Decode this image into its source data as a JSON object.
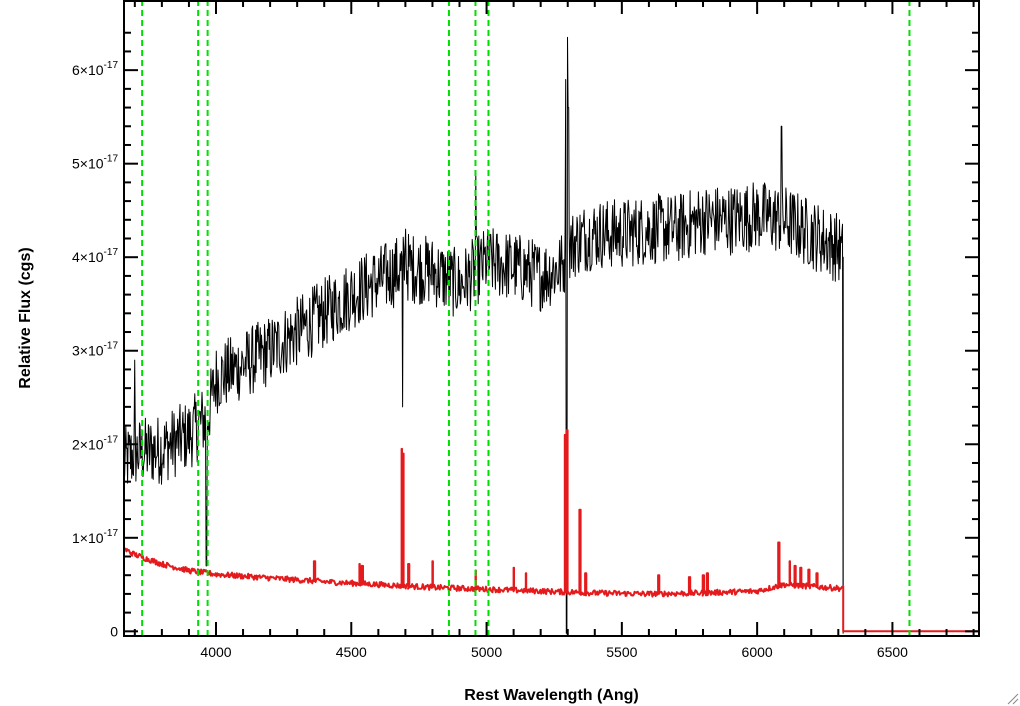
{
  "chart_data": {
    "type": "line",
    "title": "",
    "xlabel": "Rest Wavelength (Ang)",
    "ylabel": "Relative Flux (cgs)",
    "xlim": [
      3660,
      6820
    ],
    "ylim": [
      -5e-19,
      6.75e-17
    ],
    "x_ticks": [
      {
        "value": 4000,
        "label": "4000"
      },
      {
        "value": 4500,
        "label": "4500"
      },
      {
        "value": 5000,
        "label": "5000"
      },
      {
        "value": 5500,
        "label": "5500"
      },
      {
        "value": 6000,
        "label": "6000"
      },
      {
        "value": 6500,
        "label": "6500"
      }
    ],
    "y_ticks": [
      {
        "value": 0,
        "label": "0",
        "mantissa": "",
        "exponent": ""
      },
      {
        "value": 1e-17,
        "label": "1×10-17",
        "mantissa": "1×10",
        "exponent": "-17"
      },
      {
        "value": 2e-17,
        "label": "2×10-17",
        "mantissa": "2×10",
        "exponent": "-17"
      },
      {
        "value": 3e-17,
        "label": "3×10-17",
        "mantissa": "3×10",
        "exponent": "-17"
      },
      {
        "value": 4e-17,
        "label": "4×10-17",
        "mantissa": "4×10",
        "exponent": "-17"
      },
      {
        "value": 5e-17,
        "label": "5×10-17",
        "mantissa": "5×10",
        "exponent": "-17"
      },
      {
        "value": 6e-17,
        "label": "6×10-17",
        "mantissa": "6×10",
        "exponent": "-17"
      }
    ],
    "vertical_lines": [
      3727,
      3934,
      3969,
      4861,
      4959,
      5007,
      6563
    ],
    "series": [
      {
        "color": "#000000",
        "style": "solid",
        "noise": 3.8e-18,
        "x_end": 6318,
        "x": [
          3660,
          3700,
          3800,
          3900,
          3970,
          4000,
          4100,
          4200,
          4300,
          4400,
          4500,
          4600,
          4700,
          4800,
          4900,
          5000,
          5100,
          5200,
          5280,
          5300,
          5350,
          5400,
          5500,
          5600,
          5700,
          5800,
          5900,
          6000,
          6100,
          6200,
          6300,
          6318
        ],
        "y": [
          1.8e-17,
          1.9e-17,
          1.95e-17,
          2.1e-17,
          2.3e-17,
          2.7e-17,
          2.85e-17,
          3e-17,
          3.2e-17,
          3.4e-17,
          3.6e-17,
          3.75e-17,
          3.9e-17,
          3.85e-17,
          3.7e-17,
          3.95e-17,
          3.9e-17,
          3.8e-17,
          3.9e-17,
          4.1e-17,
          4.2e-17,
          4.25e-17,
          4.25e-17,
          4.3e-17,
          4.3e-17,
          4.4e-17,
          4.4e-17,
          4.45e-17,
          4.4e-17,
          4.25e-17,
          4.1e-17,
          4e-17
        ],
        "spikes_up": [
          [
            3700,
            2.9e-17
          ],
          [
            4700,
            4.3e-17
          ],
          [
            4960,
            4.9e-17
          ],
          [
            5292,
            5.9e-17
          ],
          [
            5298,
            6.35e-17
          ],
          [
            5302,
            5.6e-17
          ],
          [
            6090,
            5.4e-17
          ]
        ],
        "spikes_down": [
          [
            3965,
            7e-18
          ],
          [
            4690,
            2.4e-17
          ],
          [
            5296,
            -2e-19
          ],
          [
            6318,
            -2e-19
          ]
        ]
      },
      {
        "color": "#e41a1c",
        "style": "solid",
        "noise": 3e-19,
        "x_end": 6318,
        "x": [
          3660,
          3700,
          3800,
          3900,
          4000,
          4200,
          4400,
          4600,
          4800,
          5000,
          5200,
          5400,
          5600,
          5800,
          6000,
          6100,
          6200,
          6300,
          6318
        ],
        "y": [
          8.8e-18,
          8.2e-18,
          7.2e-18,
          6.5e-18,
          6.1e-18,
          5.7e-18,
          5.3e-18,
          5e-18,
          4.7e-18,
          4.5e-18,
          4.3e-18,
          4.1e-18,
          4e-18,
          4.1e-18,
          4.3e-18,
          5e-18,
          4.8e-18,
          4.6e-18,
          4.6e-18
        ],
        "emission_lines": [
          [
            4363,
            7.5e-18
          ],
          [
            4530,
            7.2e-18
          ],
          [
            4540,
            7e-18
          ],
          [
            4686,
            1.95e-17
          ],
          [
            4690,
            1.9e-17
          ],
          [
            4711,
            7.2e-18
          ],
          [
            4800,
            7.5e-18
          ],
          [
            4959,
            6.5e-18
          ],
          [
            5100,
            6.8e-18
          ],
          [
            5145,
            6.2e-18
          ],
          [
            5290,
            2.1e-17
          ],
          [
            5296,
            2.15e-17
          ],
          [
            5345,
            1.3e-17
          ],
          [
            5365,
            6.2e-18
          ],
          [
            5635,
            6e-18
          ],
          [
            5750,
            5.8e-18
          ],
          [
            5800,
            6e-18
          ],
          [
            5816,
            6.2e-18
          ],
          [
            6080,
            9.5e-18
          ],
          [
            6120,
            7.5e-18
          ],
          [
            6140,
            7e-18
          ],
          [
            6160,
            6.8e-18
          ],
          [
            6190,
            6.6e-18
          ],
          [
            6220,
            6.2e-18
          ]
        ],
        "after": [
          [
            6318,
            0.0
          ],
          [
            6820,
            0.0
          ]
        ]
      }
    ],
    "vertical_line_color": "#00e000",
    "grid": false,
    "legend": "none"
  }
}
